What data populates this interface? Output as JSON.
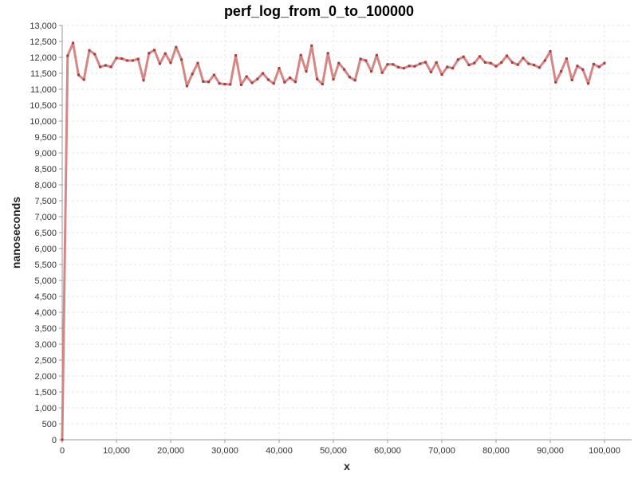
{
  "chart_data": {
    "type": "line",
    "title": "perf_log_from_0_to_100000",
    "xlabel": "x",
    "ylabel": "nanoseconds",
    "xlim": [
      0,
      105000
    ],
    "ylim": [
      0,
      13000
    ],
    "x_ticks": [
      0,
      10000,
      20000,
      30000,
      40000,
      50000,
      60000,
      70000,
      80000,
      90000,
      100000
    ],
    "x_tick_labels": [
      "0",
      "10,000",
      "20,000",
      "30,000",
      "40,000",
      "50,000",
      "60,000",
      "70,000",
      "80,000",
      "90,000",
      "100,000"
    ],
    "y_ticks": [
      0,
      500,
      1000,
      1500,
      2000,
      2500,
      3000,
      3500,
      4000,
      4500,
      5000,
      5500,
      6000,
      6500,
      7000,
      7500,
      8000,
      8500,
      9000,
      9500,
      10000,
      10500,
      11000,
      11500,
      12000,
      12500,
      13000
    ],
    "y_tick_labels": [
      "0",
      "500",
      "1,000",
      "1,500",
      "2,000",
      "2,500",
      "3,000",
      "3,500",
      "4,000",
      "4,500",
      "5,000",
      "5,500",
      "6,000",
      "6,500",
      "7,000",
      "7,500",
      "8,000",
      "8,500",
      "9,000",
      "9,500",
      "10,000",
      "10,500",
      "11,000",
      "11,500",
      "12,000",
      "12,500",
      "13,000"
    ],
    "grid": true,
    "legend": "none",
    "colors": {
      "line": "#c0504d",
      "line_fill": "#d07a78",
      "point": "#a83a38",
      "grid": "#e4e4e4",
      "axis": "#999999"
    },
    "series": [
      {
        "x": [
          0,
          1000,
          2000,
          3000,
          4000,
          5000,
          6000,
          7000,
          8000,
          9000,
          10000,
          11000,
          12000,
          13000,
          14000,
          15000,
          16000,
          17000,
          18000,
          19000,
          20000,
          21000,
          22000,
          23000,
          24000,
          25000,
          26000,
          27000,
          28000,
          29000,
          30000,
          31000,
          32000,
          33000,
          34000,
          35000,
          36000,
          37000,
          38000,
          39000,
          40000,
          41000,
          42000,
          43000,
          44000,
          45000,
          46000,
          47000,
          48000,
          49000,
          50000,
          51000,
          52000,
          53000,
          54000,
          55000,
          56000,
          57000,
          58000,
          59000,
          60000,
          61000,
          62000,
          63000,
          64000,
          65000,
          66000,
          67000,
          68000,
          69000,
          70000,
          71000,
          72000,
          73000,
          74000,
          75000,
          76000,
          77000,
          78000,
          79000,
          80000,
          81000,
          82000,
          83000,
          84000,
          85000,
          86000,
          87000,
          88000,
          89000,
          90000,
          91000,
          92000,
          93000,
          94000,
          95000,
          96000,
          97000,
          98000,
          99000,
          100000
        ],
        "values": [
          0,
          12050,
          12450,
          11450,
          11300,
          12220,
          12100,
          11700,
          11750,
          11700,
          11980,
          11960,
          11900,
          11900,
          11950,
          11280,
          12130,
          12230,
          11800,
          12120,
          11830,
          12320,
          11930,
          11100,
          11480,
          11820,
          11240,
          11230,
          11450,
          11180,
          11160,
          11150,
          12060,
          11140,
          11400,
          11200,
          11320,
          11500,
          11300,
          11180,
          11660,
          11220,
          11360,
          11230,
          12070,
          11560,
          12370,
          11320,
          11160,
          12130,
          11310,
          11820,
          11620,
          11380,
          11280,
          11950,
          11900,
          11560,
          12070,
          11520,
          11780,
          11780,
          11690,
          11660,
          11730,
          11720,
          11800,
          11850,
          11540,
          11840,
          11460,
          11700,
          11660,
          11930,
          12020,
          11760,
          11820,
          12030,
          11840,
          11820,
          11720,
          11840,
          12050,
          11840,
          11770,
          11980,
          11800,
          11760,
          11680,
          11900,
          12190,
          11220,
          11560,
          11960,
          11290,
          11730,
          11620,
          11180,
          11790,
          11700,
          11820
        ]
      }
    ]
  }
}
